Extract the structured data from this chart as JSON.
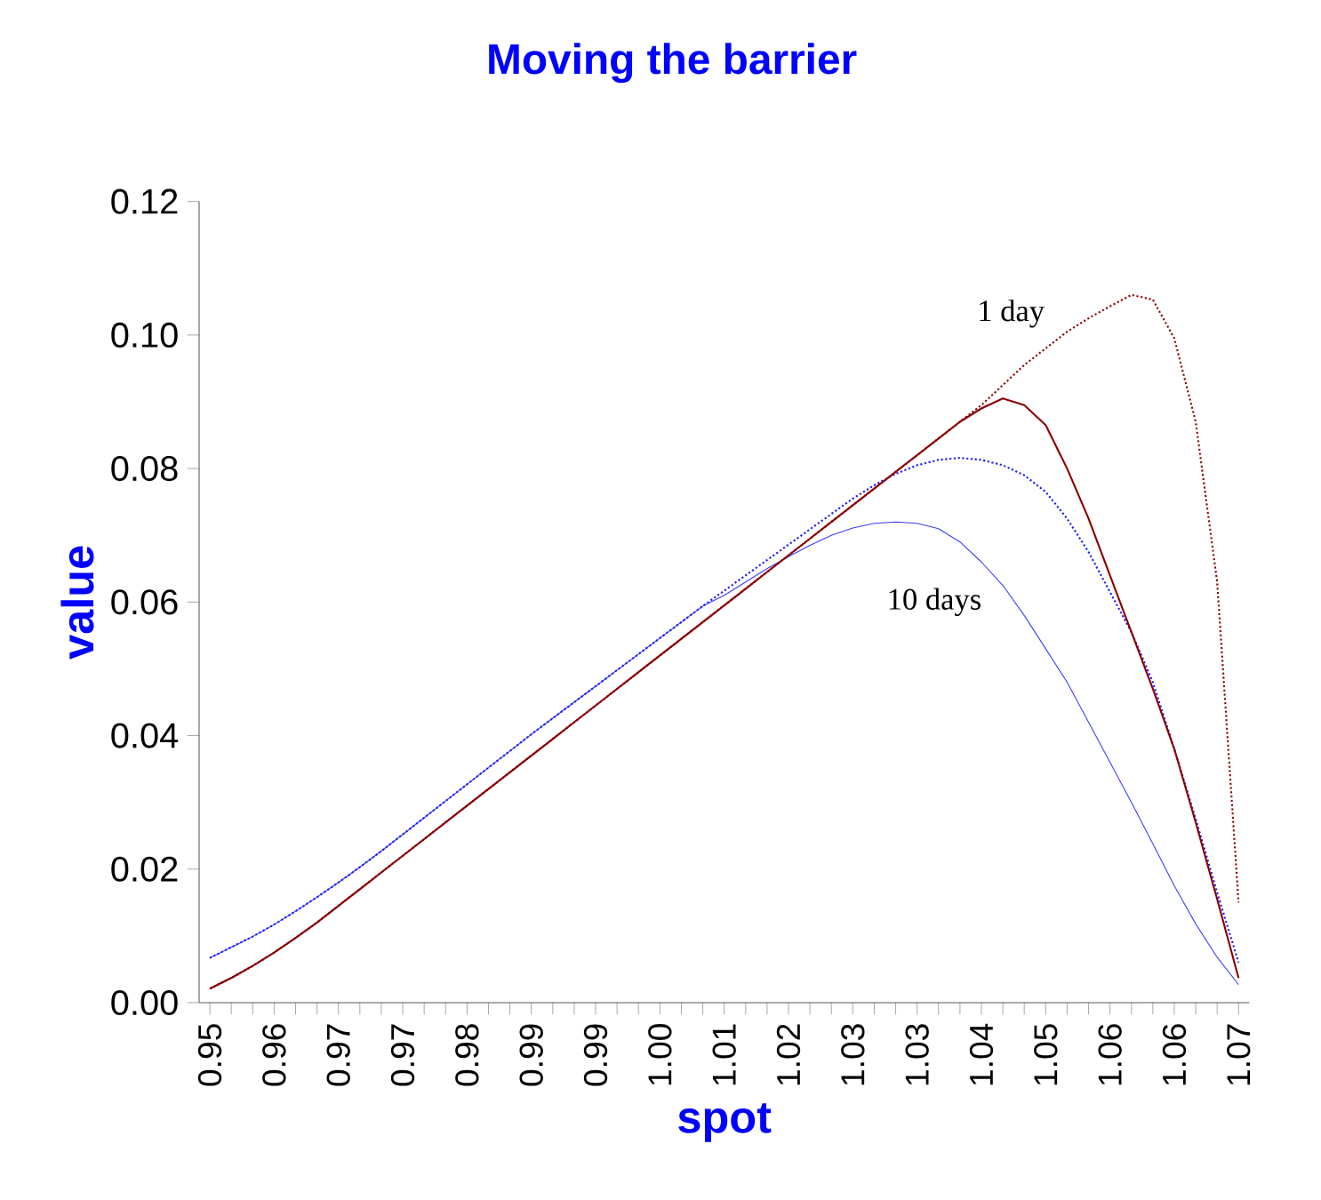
{
  "chart_data": {
    "type": "line",
    "title": "Moving the barrier",
    "xlabel": "spot",
    "ylabel": "value",
    "categories": [
      "0.95",
      null,
      null,
      "0.96",
      null,
      null,
      "0.97",
      null,
      null,
      "0.97",
      null,
      null,
      "0.98",
      null,
      null,
      "0.99",
      null,
      null,
      "0.99",
      null,
      null,
      "1.00",
      null,
      null,
      "1.01",
      null,
      null,
      "1.02",
      null,
      null,
      "1.03",
      null,
      null,
      "1.03",
      null,
      null,
      "1.04",
      null,
      null,
      "1.05",
      null,
      null,
      "1.06",
      null,
      null,
      "1.06",
      null,
      null,
      "1.07"
    ],
    "ylim": [
      0,
      0.12
    ],
    "yticks": [
      {
        "value": 0,
        "label": "0.00"
      },
      {
        "value": 0.02,
        "label": "0.02"
      },
      {
        "value": 0.04,
        "label": "0.04"
      },
      {
        "value": 0.06,
        "label": "0.06"
      },
      {
        "value": 0.08,
        "label": "0.08"
      },
      {
        "value": 0.1,
        "label": "0.10"
      },
      {
        "value": 0.12,
        "label": "0.12"
      }
    ],
    "grid": false,
    "marker": "none",
    "annotations": [
      "1 day",
      "10 days"
    ],
    "series": [
      {
        "color": "#3b3bff",
        "line_style": "solid",
        "values": [
          0.0067,
          0.0083,
          0.0099,
          0.0117,
          0.0137,
          0.0158,
          0.018,
          0.0203,
          0.0227,
          0.0252,
          0.0277,
          0.0302,
          0.0327,
          0.0352,
          0.0377,
          0.0402,
          0.0426,
          0.045,
          0.0474,
          0.0498,
          0.0522,
          0.0546,
          0.057,
          0.0594,
          0.061,
          0.063,
          0.065,
          0.0668,
          0.0685,
          0.07,
          0.0711,
          0.0718,
          0.072,
          0.0718,
          0.071,
          0.069,
          0.066,
          0.0625,
          0.058,
          0.053,
          0.048,
          0.042,
          0.036,
          0.03,
          0.0238,
          0.0175,
          0.0118,
          0.0068,
          0.0027
        ]
      },
      {
        "color": "#1a1aff",
        "line_style": "dotted",
        "values": [
          0.0067,
          0.0083,
          0.0099,
          0.0117,
          0.0137,
          0.0158,
          0.018,
          0.0203,
          0.0227,
          0.0252,
          0.0277,
          0.0302,
          0.0327,
          0.0352,
          0.0377,
          0.0402,
          0.0426,
          0.045,
          0.0474,
          0.0498,
          0.0522,
          0.0546,
          0.057,
          0.0594,
          0.0617,
          0.064,
          0.0663,
          0.0686,
          0.0709,
          0.0732,
          0.0755,
          0.0775,
          0.0792,
          0.0805,
          0.0813,
          0.0816,
          0.0813,
          0.0805,
          0.079,
          0.0765,
          0.0725,
          0.0675,
          0.0615,
          0.0555,
          0.048,
          0.038,
          0.0275,
          0.0165,
          0.006
        ]
      },
      {
        "color": "#8b0000",
        "line_style": "solid",
        "values": [
          0.0021,
          0.0037,
          0.0055,
          0.0075,
          0.0097,
          0.012,
          0.0145,
          0.017,
          0.0195,
          0.022,
          0.0245,
          0.027,
          0.0295,
          0.032,
          0.0345,
          0.037,
          0.0395,
          0.042,
          0.0445,
          0.047,
          0.0495,
          0.052,
          0.0545,
          0.057,
          0.0595,
          0.062,
          0.0645,
          0.067,
          0.0695,
          0.072,
          0.0745,
          0.077,
          0.0795,
          0.082,
          0.0845,
          0.087,
          0.089,
          0.0905,
          0.0895,
          0.0865,
          0.08,
          0.0725,
          0.064,
          0.0555,
          0.047,
          0.038,
          0.027,
          0.0155,
          0.0037
        ]
      },
      {
        "color": "#8b0000",
        "line_style": "dotted",
        "values": [
          0.0021,
          0.0037,
          0.0055,
          0.0075,
          0.0097,
          0.012,
          0.0145,
          0.017,
          0.0195,
          0.022,
          0.0245,
          0.027,
          0.0295,
          0.032,
          0.0345,
          0.037,
          0.0395,
          0.042,
          0.0445,
          0.047,
          0.0495,
          0.052,
          0.0545,
          0.057,
          0.0595,
          0.062,
          0.0645,
          0.067,
          0.0695,
          0.072,
          0.0745,
          0.077,
          0.0795,
          0.082,
          0.0845,
          0.087,
          0.0895,
          0.0925,
          0.0955,
          0.098,
          0.1005,
          0.1025,
          0.1043,
          0.106,
          0.1053,
          0.0995,
          0.087,
          0.063,
          0.015
        ]
      }
    ]
  }
}
